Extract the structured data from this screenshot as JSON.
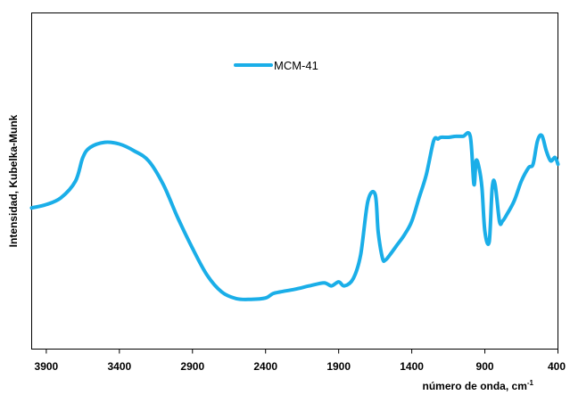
{
  "chart_data": {
    "type": "line",
    "title": "",
    "xlabel": "número de onda, cm",
    "xlabel_superscript": "-1",
    "ylabel": "Intensidad, Kubelka-Munk",
    "xlim": [
      4000,
      400
    ],
    "x_reversed": true,
    "y_ticks_shown": false,
    "ylim": [
      0,
      100
    ],
    "x_ticks": [
      "3900",
      "3400",
      "2900",
      "2400",
      "1900",
      "1400",
      "900",
      "400"
    ],
    "x_tick_values": [
      3900,
      3400,
      2900,
      2400,
      1900,
      1400,
      900,
      400
    ],
    "grid": false,
    "legend_position": "top-center",
    "series": [
      {
        "name": "MCM-41",
        "color": "#1aaee8",
        "x": [
          4000,
          3900,
          3800,
          3700,
          3650,
          3600,
          3500,
          3400,
          3300,
          3200,
          3100,
          3000,
          2900,
          2800,
          2700,
          2600,
          2500,
          2400,
          2350,
          2300,
          2200,
          2100,
          2000,
          1950,
          1900,
          1860,
          1800,
          1750,
          1700,
          1650,
          1630,
          1600,
          1580,
          1550,
          1500,
          1450,
          1400,
          1350,
          1300,
          1250,
          1220,
          1200,
          1150,
          1100,
          1050,
          1000,
          975,
          960,
          940,
          920,
          900,
          870,
          850,
          830,
          800,
          780,
          750,
          700,
          650,
          600,
          570,
          540,
          510,
          480,
          450,
          420,
          400
        ],
        "y": [
          42,
          43,
          45,
          50,
          57,
          60,
          61.5,
          61,
          59,
          56,
          49,
          39,
          30,
          22,
          17,
          15,
          14.8,
          15.2,
          16.5,
          17,
          17.8,
          18.8,
          19.7,
          18.8,
          20,
          18.8,
          21,
          28,
          44,
          46,
          35,
          27,
          26.5,
          28,
          31,
          34,
          38,
          45,
          52,
          62,
          62.5,
          63,
          63,
          63.3,
          63.3,
          63.3,
          49,
          56,
          54,
          48,
          35,
          32,
          48,
          49,
          38,
          38,
          40,
          44,
          50,
          54,
          55,
          62,
          63.5,
          59,
          56,
          57,
          55
        ]
      }
    ]
  }
}
